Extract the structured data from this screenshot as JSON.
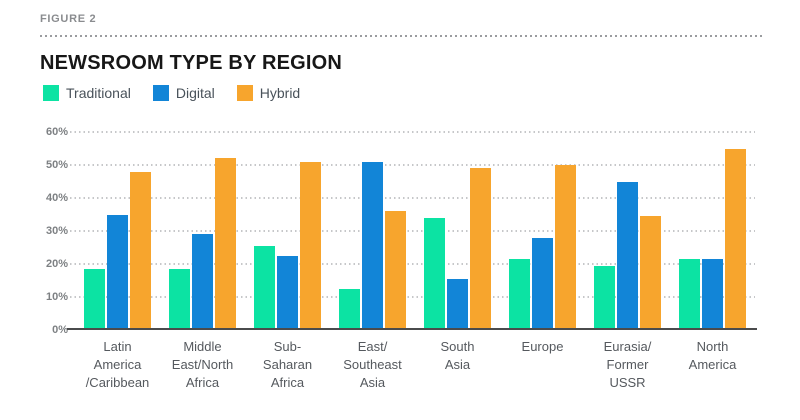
{
  "figure_label": "FIGURE 2",
  "title": "NEWSROOM TYPE BY REGION",
  "legend": [
    {
      "label": "Traditional",
      "color": "#0ce3a3"
    },
    {
      "label": "Digital",
      "color": "#1285d7"
    },
    {
      "label": "Hybrid",
      "color": "#f7a52d"
    }
  ],
  "colors": {
    "traditional": "#0ce3a3",
    "digital": "#1285d7",
    "hybrid": "#f7a52d",
    "axis_line": "#4a4b4c",
    "gridline": "#c6c7c9",
    "title_text": "#171717",
    "figure_label_text": "#8a8c8f",
    "tick_text": "#7d8083",
    "category_text": "#55595e"
  },
  "chart_data": {
    "type": "bar",
    "title": "NEWSROOM TYPE BY REGION",
    "categories": [
      "Latin\nAmerica\n/Caribbean",
      "Middle\nEast/North\nAfrica",
      "Sub-\nSaharan\nAfrica",
      "East/\nSoutheast\nAsia",
      "South\nAsia",
      "Europe",
      "Eurasia/\nFormer\nUSSR",
      "North\nAmerica"
    ],
    "series": [
      {
        "name": "Traditional",
        "color": "#0ce3a3",
        "values": [
          18.5,
          18.5,
          25.5,
          12.5,
          34,
          21.5,
          19.5,
          21.5
        ]
      },
      {
        "name": "Digital",
        "color": "#1285d7",
        "values": [
          35,
          29,
          22.5,
          51,
          15.5,
          28,
          45,
          21.5
        ]
      },
      {
        "name": "Hybrid",
        "color": "#f7a52d",
        "values": [
          48,
          52,
          51,
          36,
          49,
          50,
          34.5,
          55
        ]
      }
    ],
    "ticks": [
      "60%",
      "50%",
      "40%",
      "30%",
      "20%",
      "10%",
      "0%"
    ],
    "ylim": [
      0,
      60
    ],
    "xlabel": "",
    "ylabel": "",
    "grid": "horizontal-dotted",
    "legend_position": "top-left"
  }
}
